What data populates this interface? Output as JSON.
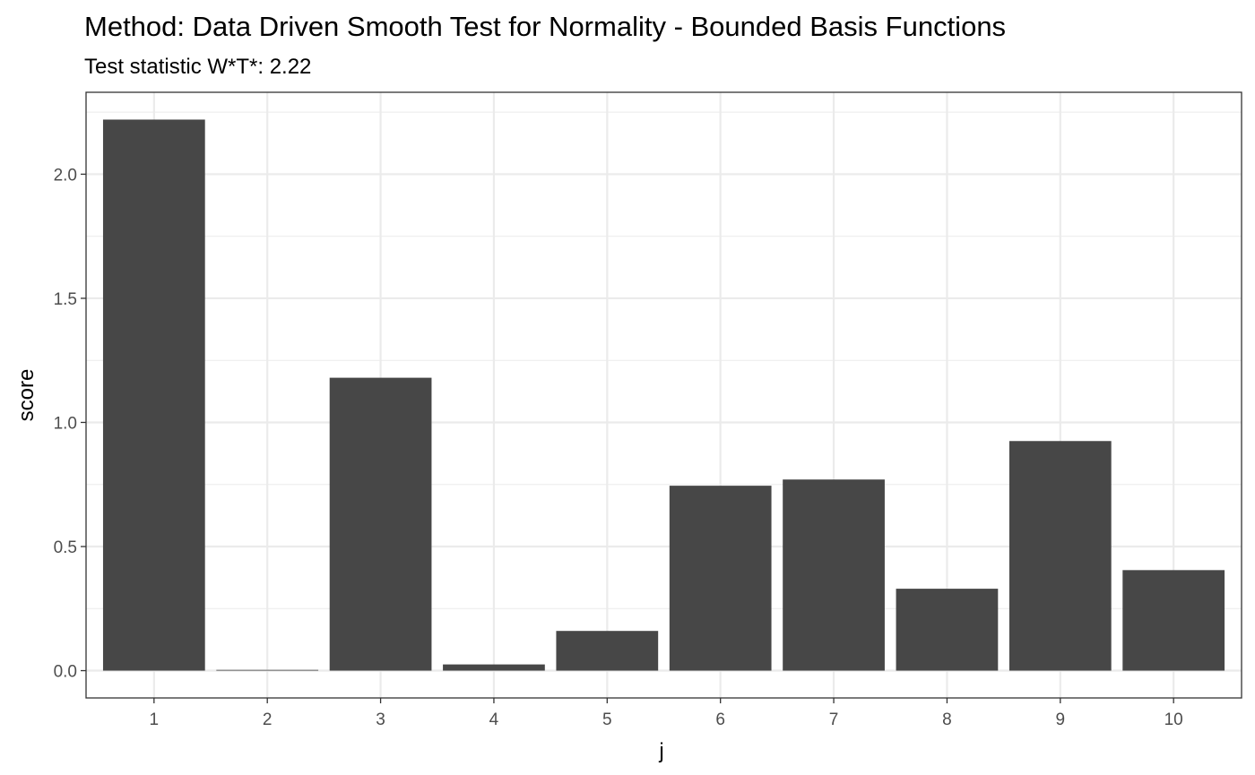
{
  "chart_data": {
    "type": "bar",
    "title": "Method: Data Driven Smooth Test for Normality - Bounded Basis Functions",
    "subtitle": "Test statistic W*T*: 2.22",
    "xlabel": "j",
    "ylabel": "score",
    "categories": [
      "1",
      "2",
      "3",
      "4",
      "5",
      "6",
      "7",
      "8",
      "9",
      "10"
    ],
    "values": [
      2.22,
      0.003,
      1.18,
      0.025,
      0.16,
      0.745,
      0.77,
      0.33,
      0.925,
      0.405
    ],
    "ylim": [
      -0.11,
      2.33
    ],
    "yticks": [
      "0.0",
      "0.5",
      "1.0",
      "1.5",
      "2.0"
    ],
    "bar_color": "#474747",
    "grid": true,
    "legend": "none"
  }
}
